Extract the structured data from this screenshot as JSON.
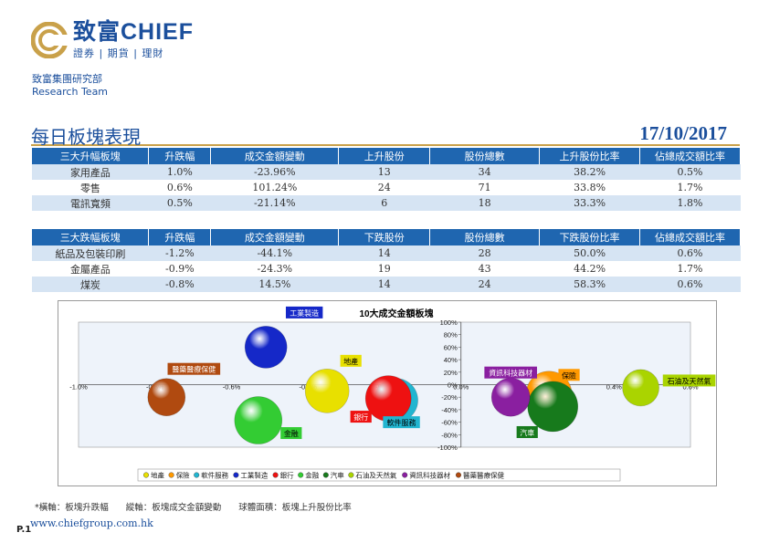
{
  "header": {
    "brand": "致富CHIEF",
    "brand_sub": "證券 | 期貨 | 理財",
    "dept_cn": "致富集團研究部",
    "dept_en": "Research Team"
  },
  "page": {
    "title": "每日板塊表現",
    "date": "17/10/2017"
  },
  "gainers": {
    "headers": [
      "三大升幅板塊",
      "升跌幅",
      "成交金額變動",
      "上升股份",
      "股份總數",
      "上升股份比率",
      "佔總成交額比率"
    ],
    "rows": [
      [
        "家用產品",
        "1.0%",
        "-23.96%",
        "13",
        "34",
        "38.2%",
        "0.5%"
      ],
      [
        "零售",
        "0.6%",
        "101.24%",
        "24",
        "71",
        "33.8%",
        "1.7%"
      ],
      [
        "電訊寬頻",
        "0.5%",
        "-21.14%",
        "6",
        "18",
        "33.3%",
        "1.8%"
      ]
    ]
  },
  "losers": {
    "headers": [
      "三大跌幅板塊",
      "升跌幅",
      "成交金額變動",
      "下跌股份",
      "股份總數",
      "下跌股份比率",
      "佔總成交額比率"
    ],
    "rows": [
      [
        "紙品及包裝印刷",
        "-1.2%",
        "-44.1%",
        "14",
        "28",
        "50.0%",
        "0.6%"
      ],
      [
        "金屬產品",
        "-0.9%",
        "-24.3%",
        "19",
        "43",
        "44.2%",
        "1.7%"
      ],
      [
        "煤炭",
        "-0.8%",
        "14.5%",
        "14",
        "24",
        "58.3%",
        "0.6%"
      ]
    ]
  },
  "chart_data": {
    "type": "scatter",
    "title": "10大成交金額板塊",
    "xlabel": "",
    "ylabel": "",
    "xlim": [
      -1.0,
      0.6
    ],
    "ylim": [
      -100,
      100
    ],
    "x_ticks": [
      "-1.0%",
      "-0.8%",
      "-0.6%",
      "-0.4%",
      "-0.2%",
      "0.0%",
      "0.2%",
      "0.4%",
      "0.6%"
    ],
    "y_ticks": [
      "100%",
      "80%",
      "60%",
      "40%",
      "20%",
      "0%",
      "-20%",
      "-40%",
      "-60%",
      "-80%",
      "-100%"
    ],
    "legend_position": "bottom",
    "series": [
      {
        "name": "地產",
        "x": -0.35,
        "y": -10,
        "size": 48,
        "color": "#e8e000",
        "label_color": "#e8e000",
        "label_text_color": "#000000"
      },
      {
        "name": "保險",
        "x": 0.23,
        "y": -15,
        "size": 50,
        "color": "#ff9900",
        "label_color": "#ff9900",
        "label_text_color": "#000000"
      },
      {
        "name": "軟件服務",
        "x": -0.17,
        "y": -25,
        "size": 48,
        "color": "#21b5d0",
        "label_color": "#21b5d0",
        "label_text_color": "#000000"
      },
      {
        "name": "工業製造",
        "x": -0.51,
        "y": 60,
        "size": 46,
        "color": "#1528c8",
        "label_color": "#1528c8",
        "label_text_color": "#ffffff"
      },
      {
        "name": "銀行",
        "x": -0.19,
        "y": -22,
        "size": 50,
        "color": "#ee1111",
        "label_color": "#ee1111",
        "label_text_color": "#ffffff"
      },
      {
        "name": "金融",
        "x": -0.53,
        "y": -57,
        "size": 52,
        "color": "#33cc33",
        "label_color": "#33cc33",
        "label_text_color": "#000000"
      },
      {
        "name": "汽車",
        "x": 0.24,
        "y": -35,
        "size": 55,
        "color": "#177a1c",
        "label_color": "#177a1c",
        "label_text_color": "#ffffff"
      },
      {
        "name": "石油及天然氣",
        "x": 0.47,
        "y": -5,
        "size": 40,
        "color": "#aad400",
        "label_color": "#aad400",
        "label_text_color": "#000000"
      },
      {
        "name": "資訊科技器材",
        "x": 0.13,
        "y": -20,
        "size": 42,
        "color": "#8a1fa0",
        "label_color": "#8a1fa0",
        "label_text_color": "#ffffff"
      },
      {
        "name": "醫藥醫療保健",
        "x": -0.77,
        "y": -20,
        "size": 41,
        "color": "#b04a10",
        "label_color": "#b04a10",
        "label_text_color": "#ffffff"
      }
    ]
  },
  "footer": {
    "note": "*橫軸：板塊升跌幅　　縱軸：板塊成交金額變動　　球體面積：板塊上升股份比率",
    "url": "www.chiefgroup.com.hk",
    "page_num": "P.1"
  }
}
